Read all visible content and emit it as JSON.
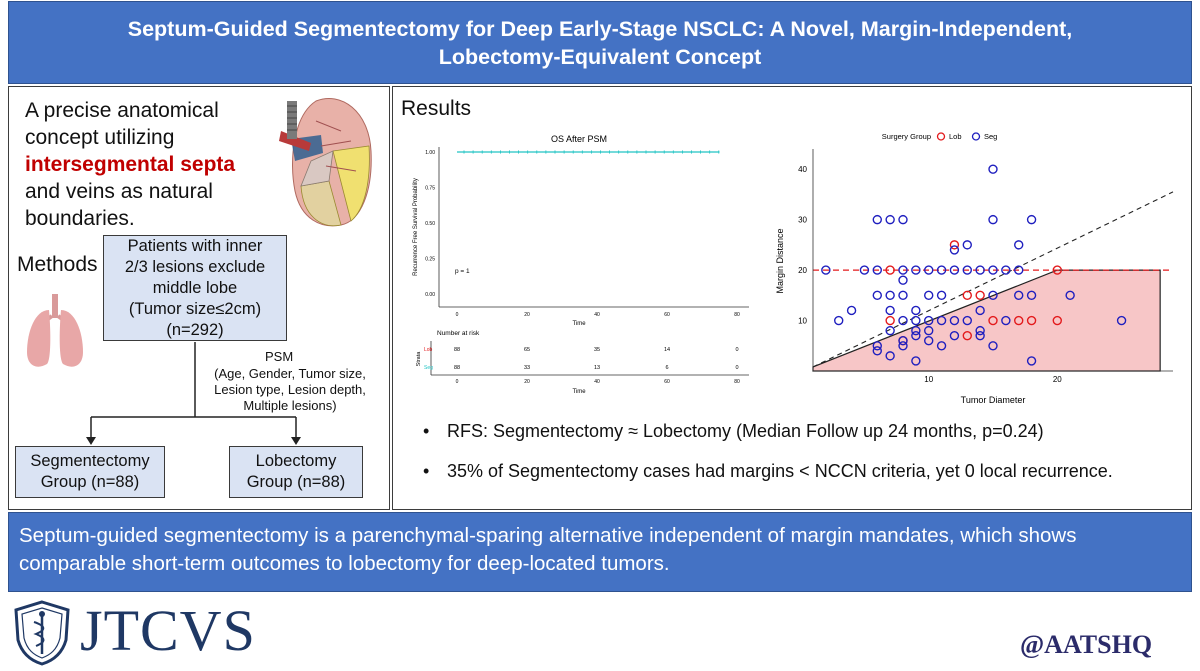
{
  "title": {
    "line1": "Septum-Guided Segmentectomy for Deep Early-Stage NSCLC: A Novel, Margin-Independent,",
    "line2": "Lobectomy-Equivalent Concept"
  },
  "left": {
    "intro_1": "A precise anatomical",
    "intro_2": "concept utilizing",
    "intro_3": "intersegmental septa",
    "intro_4": "and veins as natural",
    "intro_5": "boundaries.",
    "methods_label": "Methods",
    "patients_box": [
      "Patients with inner",
      "2/3 lesions exclude",
      "middle lobe",
      "(Tumor size≤2cm)",
      "(n=292)"
    ],
    "psm_label": "PSM",
    "psm_details": [
      "(Age, Gender, Tumor size,",
      "Lesion type, Lesion depth,",
      "Multiple lesions)"
    ],
    "seg_box": [
      "Segmentectomy",
      "Group (n=88)"
    ],
    "lob_box": [
      "Lobectomy",
      "Group (n=88)"
    ]
  },
  "right": {
    "results_label": "Results",
    "bullet_1": "RFS: Segmentectomy ≈ Lobectomy (Median Follow up 24 months, p=0.24)",
    "bullet_2": "35% of Segmentectomy cases had margins < NCCN criteria, yet 0 local recurrence."
  },
  "conclusion": {
    "line1": "Septum-guided segmentectomy is a parenchymal-sparing alternative independent of margin mandates, which shows",
    "line2": "comparable short-term outcomes to lobectomy for deep-located tumors."
  },
  "footer": {
    "logo": "JTCVS",
    "handle": "@AATSHQ"
  },
  "colors": {
    "banner": "#4472c4",
    "box_fill": "#dae3f3",
    "highlight_red": "#c00000",
    "lob": "#e31a1c",
    "seg": "#1f1fbf",
    "km_line": "#20c4c4",
    "region_fill": "#f7c6c7"
  },
  "chart_data": [
    {
      "type": "line",
      "title": "OS After PSM",
      "xlabel": "Time",
      "ylabel": "Recurrence Free Survival Probability",
      "xlim": [
        0,
        80
      ],
      "ylim": [
        0,
        1
      ],
      "x_ticks": [
        "0",
        "20",
        "40",
        "60",
        "80"
      ],
      "y_ticks": [
        "0.00",
        "0.25",
        "0.50",
        "0.75",
        "1.00"
      ],
      "annotation": "p = 1",
      "series": [
        {
          "x": [
            0,
            10,
            20,
            30,
            40,
            50,
            60,
            70,
            75
          ],
          "values": [
            1,
            1,
            1,
            1,
            1,
            1,
            1,
            1,
            1
          ]
        }
      ],
      "risk_table": {
        "title": "Number at risk",
        "ylabel": "Strata",
        "xlabel": "Time",
        "time_points": [
          "0",
          "20",
          "40",
          "60",
          "80"
        ],
        "rows": [
          {
            "name": "Lob",
            "values": [
              "88",
              "65",
              "35",
              "14",
              "0"
            ]
          },
          {
            "name": "Seg",
            "values": [
              "88",
              "33",
              "13",
              "6",
              "0"
            ]
          }
        ]
      }
    },
    {
      "type": "scatter",
      "xlabel": "Tumor Diameter",
      "ylabel": "Margin Distance",
      "xlim": [
        1,
        29
      ],
      "ylim": [
        0,
        44
      ],
      "x_ticks": [
        10,
        20
      ],
      "y_ticks": [
        10,
        20,
        30,
        40
      ],
      "legend_title": "Surgery Group",
      "legend_position": "top",
      "reference_line_y": 20,
      "series": [
        {
          "name": "Lob",
          "points": [
            [
              7,
              20
            ],
            [
              12,
              25
            ],
            [
              13,
              15
            ],
            [
              14,
              15
            ],
            [
              15,
              10
            ],
            [
              13,
              7
            ],
            [
              17,
              10
            ],
            [
              18,
              10
            ],
            [
              20,
              20
            ],
            [
              7,
              10
            ],
            [
              8,
              6
            ],
            [
              20,
              10
            ]
          ]
        },
        {
          "name": "Seg",
          "points": [
            [
              2,
              20
            ],
            [
              3,
              10
            ],
            [
              4,
              12
            ],
            [
              5,
              20
            ],
            [
              6,
              15
            ],
            [
              6,
              20
            ],
            [
              6,
              5
            ],
            [
              6,
              4
            ],
            [
              6,
              30
            ],
            [
              7,
              15
            ],
            [
              7,
              8
            ],
            [
              7,
              3
            ],
            [
              7,
              30
            ],
            [
              8,
              30
            ],
            [
              8,
              20
            ],
            [
              8,
              15
            ],
            [
              8,
              10
            ],
            [
              8,
              6
            ],
            [
              8,
              5
            ],
            [
              8,
              18
            ],
            [
              9,
              20
            ],
            [
              9,
              10
            ],
            [
              9,
              8
            ],
            [
              9,
              7
            ],
            [
              9,
              2
            ],
            [
              10,
              20
            ],
            [
              10,
              15
            ],
            [
              10,
              10
            ],
            [
              10,
              8
            ],
            [
              10,
              6
            ],
            [
              11,
              20
            ],
            [
              11,
              15
            ],
            [
              11,
              10
            ],
            [
              11,
              5
            ],
            [
              12,
              24
            ],
            [
              12,
              20
            ],
            [
              12,
              10
            ],
            [
              12,
              7
            ],
            [
              13,
              25
            ],
            [
              13,
              20
            ],
            [
              13,
              10
            ],
            [
              14,
              20
            ],
            [
              14,
              12
            ],
            [
              14,
              8
            ],
            [
              14,
              7
            ],
            [
              15,
              40
            ],
            [
              15,
              30
            ],
            [
              15,
              20
            ],
            [
              15,
              15
            ],
            [
              15,
              5
            ],
            [
              16,
              20
            ],
            [
              16,
              10
            ],
            [
              17,
              25
            ],
            [
              17,
              20
            ],
            [
              17,
              15
            ],
            [
              18,
              30
            ],
            [
              18,
              15
            ],
            [
              18,
              2
            ],
            [
              21,
              15
            ],
            [
              25,
              10
            ],
            [
              9,
              12
            ],
            [
              7,
              12
            ]
          ]
        }
      ],
      "fitted_line": {
        "x": [
          1,
          29
        ],
        "y": [
          0.8,
          35.5
        ]
      },
      "shaded_region": {
        "x": [
          1,
          20,
          28
        ],
        "y_top": [
          0.8,
          20,
          20
        ]
      }
    }
  ]
}
